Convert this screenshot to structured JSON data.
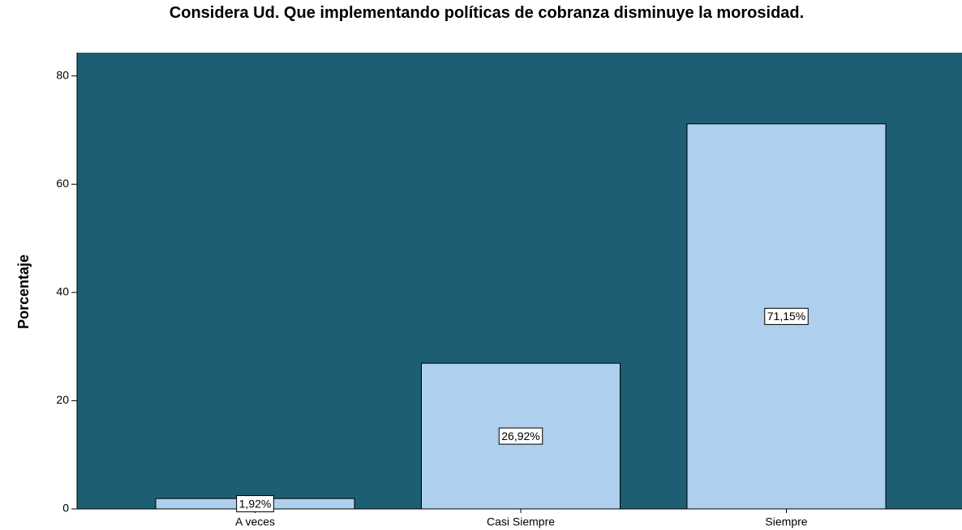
{
  "chart_data": {
    "type": "bar",
    "title": "Considera Ud. Que implementando políticas de cobranza disminuye la morosidad.",
    "y_label": "Porcentaje",
    "categories": [
      "A veces",
      "Casi Siempre",
      "Siempre"
    ],
    "values": [
      1.92,
      26.92,
      71.15
    ],
    "value_labels": [
      "1,92%",
      "26,92%",
      "71,15%"
    ],
    "color": "#aecfed",
    "background": "#1d5e74",
    "ylim": [
      0,
      84.3
    ],
    "yticks": [
      0,
      20,
      40,
      60,
      80
    ]
  }
}
